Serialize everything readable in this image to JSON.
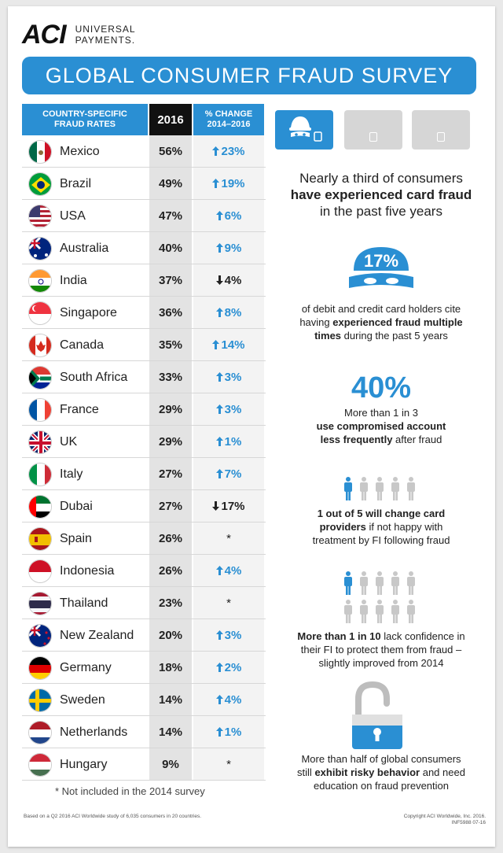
{
  "logo": {
    "mark": "ACI",
    "line1": "UNIVERSAL",
    "line2": "PAYMENTS."
  },
  "banner": {
    "title": "GLOBAL CONSUMER FRAUD SURVEY"
  },
  "table": {
    "header_country_1": "COUNTRY-SPECIFIC",
    "header_country_2": "FRAUD RATES",
    "header_year": "2016",
    "header_change_1": "% CHANGE",
    "header_change_2": "2014–2016",
    "rows": [
      {
        "country": "Mexico",
        "rate": "56%",
        "change": "23%",
        "dir": "up"
      },
      {
        "country": "Brazil",
        "rate": "49%",
        "change": "19%",
        "dir": "up"
      },
      {
        "country": "USA",
        "rate": "47%",
        "change": "6%",
        "dir": "up"
      },
      {
        "country": "Australia",
        "rate": "40%",
        "change": "9%",
        "dir": "up"
      },
      {
        "country": "India",
        "rate": "37%",
        "change": "4%",
        "dir": "down"
      },
      {
        "country": "Singapore",
        "rate": "36%",
        "change": "8%",
        "dir": "up"
      },
      {
        "country": "Canada",
        "rate": "35%",
        "change": "14%",
        "dir": "up"
      },
      {
        "country": "South Africa",
        "rate": "33%",
        "change": "3%",
        "dir": "up"
      },
      {
        "country": "France",
        "rate": "29%",
        "change": "3%",
        "dir": "up"
      },
      {
        "country": "UK",
        "rate": "29%",
        "change": "1%",
        "dir": "up"
      },
      {
        "country": "Italy",
        "rate": "27%",
        "change": "7%",
        "dir": "up"
      },
      {
        "country": "Dubai",
        "rate": "27%",
        "change": "17%",
        "dir": "down"
      },
      {
        "country": "Spain",
        "rate": "26%",
        "change": "*",
        "dir": "na"
      },
      {
        "country": "Indonesia",
        "rate": "26%",
        "change": "4%",
        "dir": "up"
      },
      {
        "country": "Thailand",
        "rate": "23%",
        "change": "*",
        "dir": "na"
      },
      {
        "country": "New Zealand",
        "rate": "20%",
        "change": "3%",
        "dir": "up"
      },
      {
        "country": "Germany",
        "rate": "18%",
        "change": "2%",
        "dir": "up"
      },
      {
        "country": "Sweden",
        "rate": "14%",
        "change": "4%",
        "dir": "up"
      },
      {
        "country": "Netherlands",
        "rate": "14%",
        "change": "1%",
        "dir": "up"
      },
      {
        "country": "Hungary",
        "rate": "9%",
        "change": "*",
        "dir": "na"
      }
    ],
    "footnote": "* Not included in the 2014 survey"
  },
  "stats": {
    "s1_a": "Nearly a third of consumers",
    "s1_b": "have experienced card fraud",
    "s1_c": "in the past five years",
    "s2_big": "17%",
    "s2_a": "of debit and credit card holders cite",
    "s2_b1": "having ",
    "s2_b2": "experienced fraud multiple",
    "s2_c1": "times",
    "s2_c2": " during the past 5 years",
    "s3_big": "40%",
    "s3_a": "More than 1 in 3",
    "s3_b": "use compromised account",
    "s3_c1": "less frequently",
    "s3_c2": " after fraud",
    "s4_a": "1 out of 5 will change card",
    "s4_b1": "providers",
    "s4_b2": " if not happy with",
    "s4_c": "treatment by FI following fraud",
    "s5_a1": "More than 1 in 10",
    "s5_a2": " lack confidence in",
    "s5_b": "their FI to protect them from fraud –",
    "s5_c": "slightly improved from 2014",
    "s6_a": "More than half of global consumers",
    "s6_b1": "still ",
    "s6_b2": "exhibit risky behavior",
    "s6_b3": " and need",
    "s6_c": "education on fraud prevention"
  },
  "footer": {
    "source": "Based on a Q2 2016 ACI Worldwide study of 6,035 consumers in 20 countries.",
    "copyright": "Copyright ACI Worldwide, Inc. 2016.",
    "code": "INF5988 07-16"
  },
  "colors": {
    "accent": "#2a8fd3",
    "dark": "#111111",
    "grey": "#d6d6d6"
  }
}
